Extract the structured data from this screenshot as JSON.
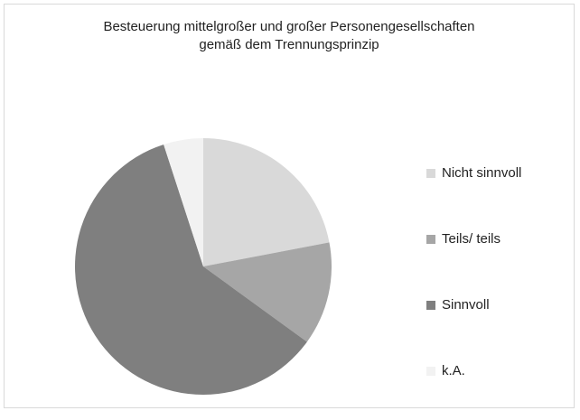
{
  "chart_data": {
    "type": "pie",
    "title": "Besteuerung mittelgroßer und großer Personengesellschaften\ngemäß dem Trennungsprinzip",
    "categories": [
      "Nicht sinnvoll",
      "Teils/ teils",
      "Sinnvoll",
      "k.A."
    ],
    "values": [
      22,
      13,
      60,
      5
    ],
    "colors": [
      "#d9d9d9",
      "#a6a6a6",
      "#7f7f7f",
      "#f2f2f2"
    ],
    "legend": "right"
  }
}
